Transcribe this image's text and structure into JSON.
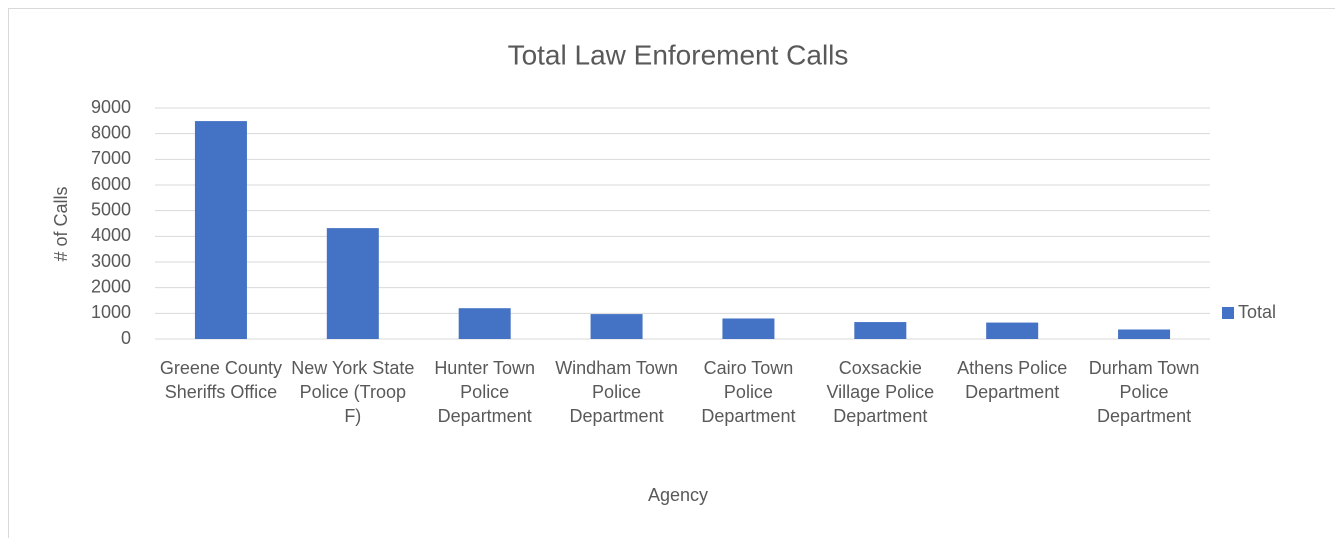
{
  "chart_data": {
    "type": "bar",
    "title": "Total Law Enforement Calls",
    "x_label": "Agency",
    "y_label": "# of Calls",
    "categories": [
      "Greene County Sheriffs Office",
      "New York State Police (Troop F)",
      "Hunter Town Police Department",
      "Windham Town Police Department",
      "Cairo Town Police Department",
      "Coxsackie Village Police Department",
      "Athens Police Department",
      "Durham Town Police Department"
    ],
    "series": [
      {
        "name": "Total",
        "color": "#4472c4",
        "values": [
          8490,
          4320,
          1200,
          970,
          800,
          660,
          640,
          370
        ]
      }
    ],
    "ylim": [
      0,
      9000
    ],
    "yticks": [
      0,
      1000,
      2000,
      3000,
      4000,
      5000,
      6000,
      7000,
      8000,
      9000
    ],
    "grid": true,
    "legend": "right"
  }
}
